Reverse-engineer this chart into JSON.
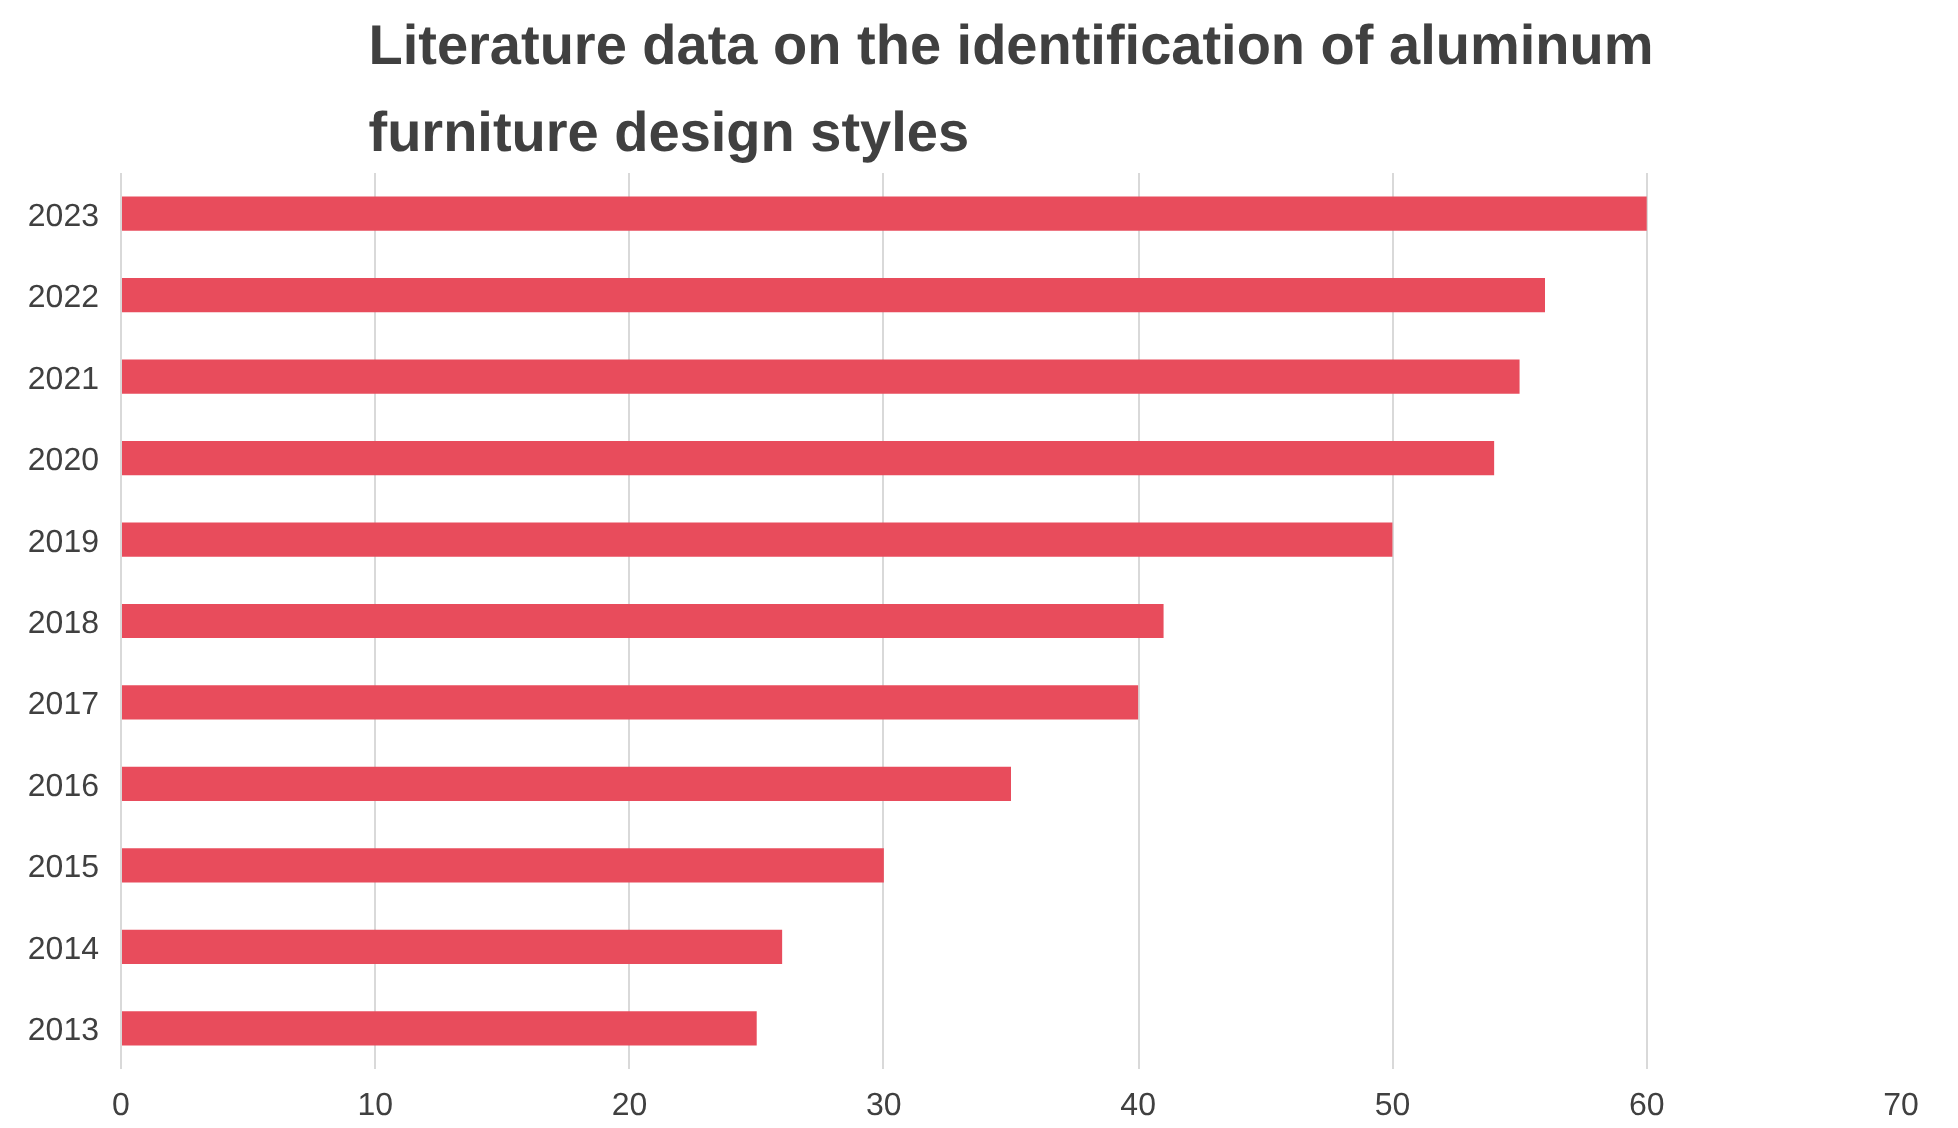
{
  "chart_data": {
    "type": "bar",
    "orientation": "horizontal",
    "title": "Literature data on the identification of aluminum furniture design styles",
    "categories": [
      "2023",
      "2022",
      "2021",
      "2020",
      "2019",
      "2018",
      "2017",
      "2016",
      "2015",
      "2014",
      "2013"
    ],
    "values": [
      60,
      56,
      55,
      54,
      50,
      41,
      40,
      35,
      30,
      26,
      25
    ],
    "color": "#e84c5c",
    "xlim": [
      0,
      70
    ],
    "xticks": [
      0,
      10,
      20,
      30,
      40,
      50,
      60,
      70
    ],
    "grid": "x"
  }
}
